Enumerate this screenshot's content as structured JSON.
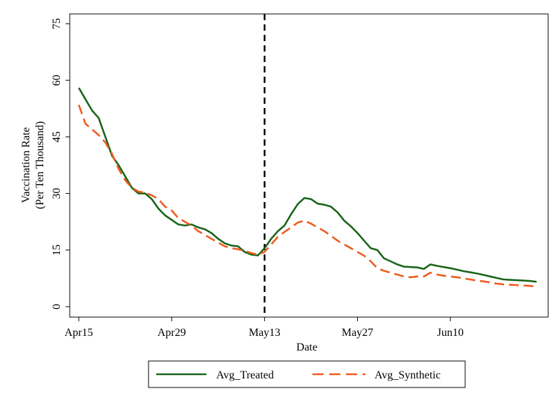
{
  "chart_data": {
    "type": "line",
    "title": "",
    "xlabel": "Date",
    "ylabel_line1": "Vaccination Rate",
    "ylabel_line2": "(Per Ten Thousand)",
    "ylim": [
      0,
      75
    ],
    "yticks": [
      0,
      15,
      30,
      45,
      60,
      75
    ],
    "xlim_days": [
      0,
      70
    ],
    "xticks": [
      {
        "label": "Apr15",
        "day": 0
      },
      {
        "label": "Apr29",
        "day": 14
      },
      {
        "label": "May13",
        "day": 28
      },
      {
        "label": "May27",
        "day": 42
      },
      {
        "label": "Jun10",
        "day": 56
      }
    ],
    "x_start_label": "Apr15",
    "vline_day": 28,
    "vline_label": "May13",
    "legend_position": "bottom",
    "grid": false,
    "series": [
      {
        "name": "Avg_Treated",
        "color": "#1a6419",
        "dash": "solid",
        "x": [
          0,
          1,
          2,
          3,
          4,
          5,
          6,
          7,
          8,
          9,
          10,
          11,
          12,
          13,
          14,
          15,
          16,
          17,
          18,
          19,
          20,
          21,
          22,
          23,
          24,
          25,
          26,
          27,
          28,
          29,
          30,
          31,
          32,
          33,
          34,
          35,
          36,
          37,
          38,
          39,
          40,
          41,
          42,
          43,
          44,
          45,
          46,
          47,
          48,
          49,
          50,
          51,
          52,
          53,
          54,
          55,
          56,
          57,
          58,
          59,
          60,
          61,
          62,
          63,
          64,
          65,
          66,
          67,
          68,
          69
        ],
        "values": [
          58.0,
          55.0,
          52.0,
          50.0,
          45.0,
          40.0,
          37.5,
          34.5,
          31.5,
          30.0,
          30.0,
          28.5,
          26.0,
          24.2,
          23.0,
          21.8,
          21.5,
          21.8,
          21.0,
          20.5,
          19.5,
          18.0,
          16.8,
          16.2,
          16.0,
          14.5,
          13.8,
          13.6,
          15.5,
          18.0,
          20.0,
          21.5,
          24.5,
          27.2,
          28.8,
          28.5,
          27.3,
          27.0,
          26.5,
          25.0,
          22.8,
          21.3,
          19.5,
          17.5,
          15.5,
          15.0,
          12.8,
          12.0,
          11.2,
          10.6,
          10.5,
          10.4,
          10.0,
          11.2,
          10.8,
          10.5,
          10.2,
          9.8,
          9.4,
          9.1,
          8.8,
          8.4,
          8.0,
          7.6,
          7.2,
          7.1,
          7.0,
          6.9,
          6.8,
          6.6
        ]
      },
      {
        "name": "Avg_Synthetic",
        "color": "#f05a1e",
        "dash": "dashed",
        "x": [
          0,
          1,
          2,
          3,
          4,
          5,
          6,
          7,
          8,
          9,
          10,
          11,
          12,
          13,
          14,
          15,
          16,
          17,
          18,
          19,
          20,
          21,
          22,
          23,
          24,
          25,
          26,
          27,
          28,
          29,
          30,
          31,
          32,
          33,
          34,
          35,
          36,
          37,
          38,
          39,
          40,
          41,
          42,
          43,
          44,
          45,
          46,
          47,
          48,
          49,
          50,
          51,
          52,
          53,
          54,
          55,
          56,
          57,
          58,
          59,
          60,
          61,
          62,
          63,
          64,
          65,
          66,
          67,
          68,
          69
        ],
        "values": [
          53.5,
          48.5,
          47.0,
          45.5,
          43.5,
          40.5,
          36.5,
          33.5,
          31.5,
          30.5,
          30.2,
          29.5,
          28.5,
          26.5,
          25.5,
          23.5,
          22.5,
          21.5,
          20.0,
          19.0,
          18.0,
          17.0,
          16.0,
          15.5,
          15.2,
          14.8,
          14.2,
          13.8,
          14.5,
          16.5,
          18.5,
          19.8,
          21.0,
          22.3,
          22.8,
          22.0,
          21.0,
          20.0,
          18.8,
          17.5,
          16.5,
          15.5,
          14.5,
          13.5,
          12.0,
          10.2,
          9.5,
          9.0,
          8.5,
          8.0,
          7.8,
          8.0,
          8.0,
          9.0,
          8.5,
          8.2,
          8.0,
          7.8,
          7.5,
          7.2,
          6.9,
          6.7,
          6.4,
          6.1,
          5.9,
          5.8,
          5.7,
          5.6,
          5.5,
          5.3
        ]
      }
    ]
  }
}
